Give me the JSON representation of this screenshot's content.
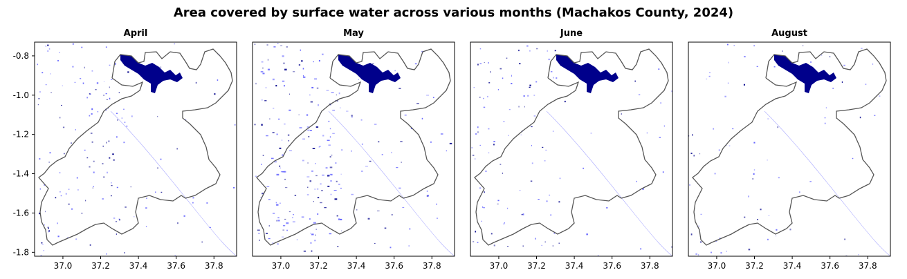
{
  "title": "Area covered by surface water across various months (Machakos County, 2024)",
  "colors": {
    "water": "#00008b",
    "water_light": "#5a5aff",
    "boundary": "#555555",
    "frame": "#000000"
  },
  "axes": {
    "x_ticks": [
      "37.0",
      "37.2",
      "37.4",
      "37.6",
      "37.8"
    ],
    "y_ticks": [
      "-0.8",
      "-1.0",
      "-1.2",
      "-1.4",
      "-1.6",
      "-1.8"
    ],
    "xlim": [
      36.85,
      37.92
    ],
    "ylim": [
      -1.82,
      -0.73
    ]
  },
  "panels": [
    {
      "month": "April",
      "water_level": 0.6
    },
    {
      "month": "May",
      "water_level": 0.9
    },
    {
      "month": "June",
      "water_level": 0.45
    },
    {
      "month": "August",
      "water_level": 0.3
    }
  ]
}
